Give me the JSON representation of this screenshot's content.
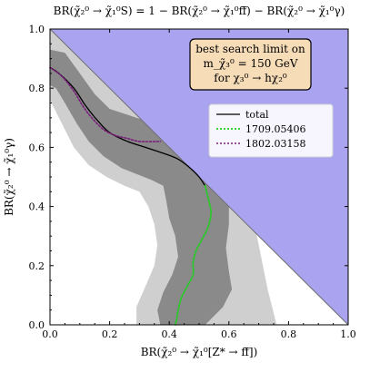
{
  "chart_data": {
    "type": "line",
    "title": "BR(χ̃₂⁰ → χ̃₁⁰S) = 1 − BR(χ̃₂⁰ → χ̃₁⁰ff̄) − BR(χ̃₂⁰ → χ̃₁⁰γ)",
    "xlabel": "BR(χ̃₂⁰ → χ̃₁⁰[Z* → ff̄])",
    "ylabel": "BR(χ̃₂⁰ → χ̃₁⁰γ)",
    "xlim": [
      0,
      1
    ],
    "ylim": [
      0,
      1
    ],
    "xticks": [
      "0.0",
      "0.2",
      "0.4",
      "0.6",
      "0.8",
      "1.0"
    ],
    "yticks": [
      "0.0",
      "0.2",
      "0.4",
      "0.6",
      "0.8",
      "1.0"
    ],
    "grid": false,
    "legend_position": "upper-right",
    "annotation": {
      "line1": "best search limit on",
      "line2": "m_χ̃₃⁰ = 150  GeV",
      "line3": "for χ₃⁰ → hχ₂⁰"
    },
    "colors": {
      "excluded_region": "#a9a3f0",
      "band_outer": "#cfcfcf",
      "band_inner": "#8a8a8a",
      "total": "#000000",
      "series_1709": "#22cc22",
      "series_1802": "#7a1f7a",
      "annotation_fill": "#f7dcb8"
    },
    "series": [
      {
        "name": "total",
        "style": "solid",
        "x": [
          0.0,
          0.03,
          0.08,
          0.12,
          0.16,
          0.2,
          0.26,
          0.32,
          0.38,
          0.43,
          0.47,
          0.5,
          0.52
        ],
        "y": [
          0.87,
          0.85,
          0.8,
          0.74,
          0.69,
          0.65,
          0.62,
          0.6,
          0.58,
          0.56,
          0.53,
          0.5,
          0.47
        ]
      },
      {
        "name": "1709.05406",
        "style": "dotted",
        "x": [
          0.52,
          0.53,
          0.54,
          0.53,
          0.51,
          0.49,
          0.48,
          0.48,
          0.46,
          0.44,
          0.43,
          0.425,
          0.42
        ],
        "y": [
          0.47,
          0.43,
          0.38,
          0.33,
          0.29,
          0.25,
          0.21,
          0.17,
          0.13,
          0.09,
          0.05,
          0.02,
          0.0
        ]
      },
      {
        "name": "1802.03158",
        "style": "dotted",
        "x": [
          0.0,
          0.04,
          0.08,
          0.11,
          0.14,
          0.18,
          0.22,
          0.26,
          0.3,
          0.37
        ],
        "y": [
          0.87,
          0.84,
          0.79,
          0.74,
          0.7,
          0.66,
          0.64,
          0.63,
          0.62,
          0.62
        ]
      }
    ],
    "bands": {
      "inner_upper": [
        [
          0.0,
          0.93
        ],
        [
          0.05,
          0.92
        ],
        [
          0.1,
          0.85
        ],
        [
          0.15,
          0.78
        ],
        [
          0.2,
          0.73
        ],
        [
          0.26,
          0.71
        ],
        [
          0.32,
          0.69
        ],
        [
          0.38,
          0.66
        ],
        [
          0.44,
          0.63
        ],
        [
          0.5,
          0.6
        ],
        [
          0.55,
          0.56
        ],
        [
          0.58,
          0.5
        ],
        [
          0.6,
          0.42
        ],
        [
          0.6,
          0.34
        ],
        [
          0.59,
          0.26
        ],
        [
          0.6,
          0.18
        ],
        [
          0.61,
          0.12
        ],
        [
          0.58,
          0.06
        ],
        [
          0.55,
          0.03
        ],
        [
          0.52,
          0.0
        ]
      ],
      "inner_lower": [
        [
          0.37,
          0.0
        ],
        [
          0.36,
          0.05
        ],
        [
          0.38,
          0.11
        ],
        [
          0.41,
          0.17
        ],
        [
          0.43,
          0.23
        ],
        [
          0.42,
          0.3
        ],
        [
          0.4,
          0.36
        ],
        [
          0.39,
          0.42
        ],
        [
          0.38,
          0.47
        ],
        [
          0.34,
          0.49
        ],
        [
          0.29,
          0.51
        ],
        [
          0.24,
          0.53
        ],
        [
          0.18,
          0.57
        ],
        [
          0.13,
          0.62
        ],
        [
          0.09,
          0.68
        ],
        [
          0.05,
          0.75
        ],
        [
          0.02,
          0.8
        ],
        [
          0.0,
          0.81
        ]
      ],
      "outer_upper": [
        [
          0.0,
          1.0
        ],
        [
          0.04,
          1.0
        ],
        [
          0.1,
          0.95
        ],
        [
          0.2,
          0.88
        ],
        [
          0.3,
          0.8
        ],
        [
          0.4,
          0.72
        ],
        [
          0.5,
          0.63
        ],
        [
          0.6,
          0.52
        ],
        [
          0.66,
          0.42
        ],
        [
          0.69,
          0.32
        ],
        [
          0.71,
          0.22
        ],
        [
          0.73,
          0.12
        ],
        [
          0.76,
          0.0
        ]
      ],
      "outer_lower": [
        [
          0.29,
          0.0
        ],
        [
          0.29,
          0.06
        ],
        [
          0.32,
          0.13
        ],
        [
          0.35,
          0.2
        ],
        [
          0.36,
          0.27
        ],
        [
          0.35,
          0.34
        ],
        [
          0.33,
          0.4
        ],
        [
          0.3,
          0.45
        ],
        [
          0.25,
          0.47
        ],
        [
          0.19,
          0.5
        ],
        [
          0.13,
          0.54
        ],
        [
          0.08,
          0.6
        ],
        [
          0.04,
          0.68
        ],
        [
          0.01,
          0.74
        ],
        [
          0.0,
          0.76
        ]
      ]
    }
  }
}
